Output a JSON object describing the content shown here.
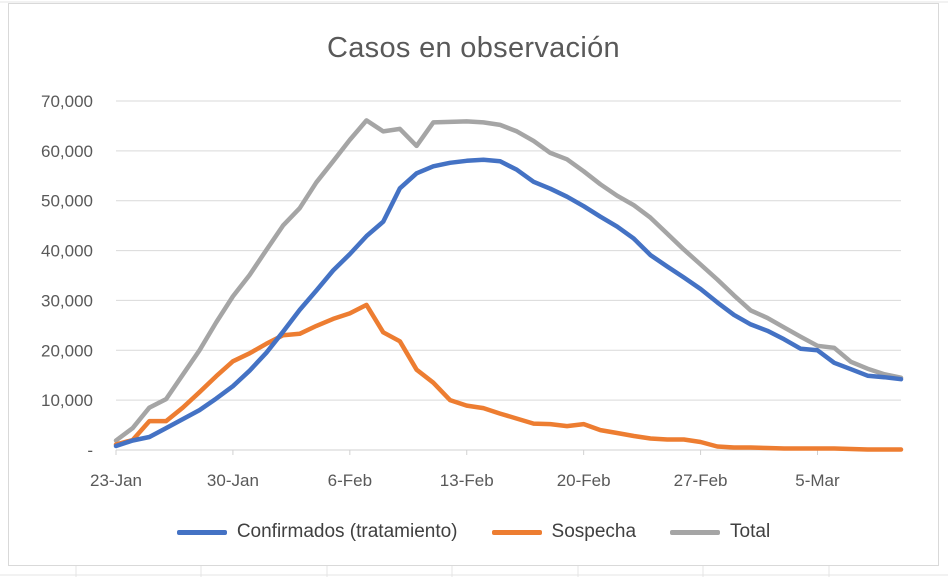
{
  "chart_data": {
    "type": "line",
    "title": "Casos en observación",
    "xlabel": "",
    "ylabel": "",
    "x_ticks": [
      "23-Jan",
      "30-Jan",
      "6-Feb",
      "13-Feb",
      "20-Feb",
      "27-Feb",
      "5-Mar"
    ],
    "x_range": [
      "2020-01-23",
      "2020-03-10"
    ],
    "ylim": [
      0,
      70000
    ],
    "y_ticks": [
      "-",
      "10,000",
      "20,000",
      "30,000",
      "40,000",
      "50,000",
      "60,000",
      "70,000"
    ],
    "y_tick_values": [
      0,
      10000,
      20000,
      30000,
      40000,
      50000,
      60000,
      70000
    ],
    "grid": "horizontal",
    "legend_position": "bottom",
    "series": [
      {
        "name": "Confirmados (tratamiento)",
        "color": "#4472c4",
        "x": [
          "2020-01-23",
          "2020-01-24",
          "2020-01-25",
          "2020-01-26",
          "2020-01-27",
          "2020-01-28",
          "2020-01-29",
          "2020-01-30",
          "2020-01-31",
          "2020-02-01",
          "2020-02-02",
          "2020-02-03",
          "2020-02-04",
          "2020-02-05",
          "2020-02-06",
          "2020-02-07",
          "2020-02-08",
          "2020-02-09",
          "2020-02-10",
          "2020-02-11",
          "2020-02-12",
          "2020-02-13",
          "2020-02-14",
          "2020-02-15",
          "2020-02-16",
          "2020-02-17",
          "2020-02-18",
          "2020-02-19",
          "2020-02-20",
          "2020-02-21",
          "2020-02-22",
          "2020-02-23",
          "2020-02-24",
          "2020-02-25",
          "2020-02-26",
          "2020-02-27",
          "2020-02-28",
          "2020-02-29",
          "2020-03-01",
          "2020-03-02",
          "2020-03-03",
          "2020-03-04",
          "2020-03-05",
          "2020-03-06",
          "2020-03-07",
          "2020-03-08",
          "2020-03-09",
          "2020-03-10"
        ],
        "y": [
          800,
          1900,
          2600,
          4400,
          6200,
          8000,
          10300,
          12800,
          15900,
          19500,
          23700,
          28100,
          32000,
          36000,
          39300,
          42900,
          45800,
          52500,
          55500,
          56900,
          57600,
          58000,
          58200,
          57900,
          56200,
          53800,
          52400,
          50800,
          48900,
          46800,
          44800,
          42400,
          39100,
          36800,
          34600,
          32300,
          29600,
          27100,
          25200,
          23900,
          22200,
          20300,
          20000,
          17500,
          16200,
          14900,
          14600,
          14200
        ]
      },
      {
        "name": "Sospecha",
        "color": "#ed7d31",
        "x": [
          "2020-01-23",
          "2020-01-24",
          "2020-01-25",
          "2020-01-26",
          "2020-01-27",
          "2020-01-28",
          "2020-01-29",
          "2020-01-30",
          "2020-01-31",
          "2020-02-01",
          "2020-02-02",
          "2020-02-03",
          "2020-02-04",
          "2020-02-05",
          "2020-02-06",
          "2020-02-07",
          "2020-02-08",
          "2020-02-09",
          "2020-02-10",
          "2020-02-11",
          "2020-02-12",
          "2020-02-13",
          "2020-02-14",
          "2020-02-15",
          "2020-02-16",
          "2020-02-17",
          "2020-02-18",
          "2020-02-19",
          "2020-02-20",
          "2020-02-21",
          "2020-02-22",
          "2020-02-23",
          "2020-02-24",
          "2020-02-25",
          "2020-02-26",
          "2020-02-27",
          "2020-02-28",
          "2020-02-29",
          "2020-03-01",
          "2020-03-02",
          "2020-03-03",
          "2020-03-04",
          "2020-03-05",
          "2020-03-06",
          "2020-03-07",
          "2020-03-08",
          "2020-03-09",
          "2020-03-10"
        ],
        "y": [
          1100,
          2000,
          5800,
          5800,
          8500,
          11600,
          14800,
          17800,
          19400,
          21300,
          23000,
          23300,
          24900,
          26300,
          27400,
          29100,
          23600,
          21800,
          16100,
          13500,
          10000,
          8900,
          8400,
          7300,
          6300,
          5300,
          5200,
          4800,
          5200,
          4000,
          3400,
          2800,
          2300,
          2100,
          2100,
          1600,
          700,
          500,
          500,
          400,
          300,
          300,
          300,
          300,
          200,
          100,
          100,
          100
        ]
      },
      {
        "name": "Total",
        "color": "#a5a5a5",
        "x": [
          "2020-01-23",
          "2020-01-24",
          "2020-01-25",
          "2020-01-26",
          "2020-01-27",
          "2020-01-28",
          "2020-01-29",
          "2020-01-30",
          "2020-01-31",
          "2020-02-01",
          "2020-02-02",
          "2020-02-03",
          "2020-02-04",
          "2020-02-05",
          "2020-02-06",
          "2020-02-07",
          "2020-02-08",
          "2020-02-09",
          "2020-02-10",
          "2020-02-11",
          "2020-02-12",
          "2020-02-13",
          "2020-02-14",
          "2020-02-15",
          "2020-02-16",
          "2020-02-17",
          "2020-02-18",
          "2020-02-19",
          "2020-02-20",
          "2020-02-21",
          "2020-02-22",
          "2020-02-23",
          "2020-02-24",
          "2020-02-25",
          "2020-02-26",
          "2020-02-27",
          "2020-02-28",
          "2020-02-29",
          "2020-03-01",
          "2020-03-02",
          "2020-03-03",
          "2020-03-04",
          "2020-03-05",
          "2020-03-06",
          "2020-03-07",
          "2020-03-08",
          "2020-03-09",
          "2020-03-10"
        ],
        "y": [
          1900,
          4400,
          8500,
          10200,
          15100,
          20000,
          25600,
          30800,
          35100,
          40100,
          45000,
          48500,
          53700,
          57900,
          62200,
          66100,
          63900,
          64400,
          61000,
          65700,
          65800,
          65900,
          65700,
          65200,
          63900,
          62000,
          59600,
          58300,
          55900,
          53300,
          51000,
          49100,
          46600,
          43400,
          40200,
          37200,
          34200,
          31000,
          28000,
          26500,
          24600,
          22700,
          20900,
          20500,
          17700,
          16300,
          15200,
          14500
        ]
      }
    ]
  }
}
